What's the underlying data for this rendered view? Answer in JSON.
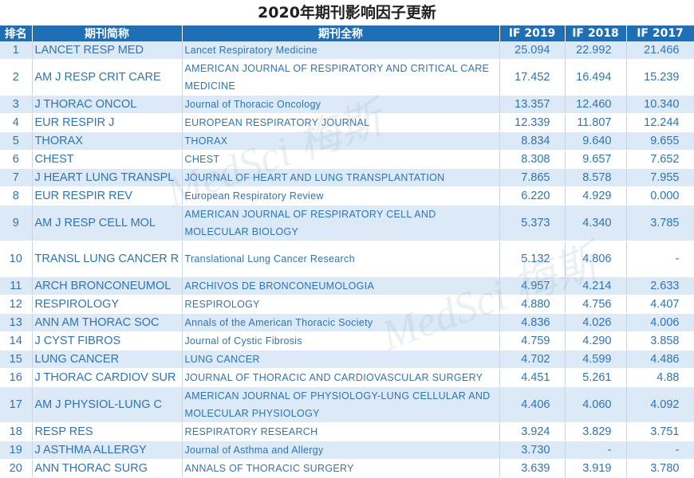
{
  "title": "2020年期刊影响因子更新",
  "headers": {
    "rank": "排名",
    "abbr": "期刊简称",
    "full": "期刊全称",
    "if2019": "IF 2019",
    "if2018": "IF 2018",
    "if2017": "IF 2017"
  },
  "watermark": "MedSci 梅斯",
  "rows": [
    {
      "rank": "1",
      "abbr": "LANCET RESP MED",
      "full": "Lancet Respiratory Medicine",
      "if2019": "25.094",
      "if2018": "22.992",
      "if2017": "21.466"
    },
    {
      "rank": "2",
      "abbr": "AM J RESP CRIT CARE",
      "full": "AMERICAN JOURNAL OF RESPIRATORY AND CRITICAL CARE MEDICINE",
      "if2019": "17.452",
      "if2018": "16.494",
      "if2017": "15.239"
    },
    {
      "rank": "3",
      "abbr": "J THORAC ONCOL",
      "full": "Journal of Thoracic Oncology",
      "if2019": "13.357",
      "if2018": "12.460",
      "if2017": "10.340"
    },
    {
      "rank": "4",
      "abbr": "EUR RESPIR J",
      "full": "EUROPEAN RESPIRATORY JOURNAL",
      "if2019": "12.339",
      "if2018": "11.807",
      "if2017": "12.244"
    },
    {
      "rank": "5",
      "abbr": "THORAX",
      "full": "THORAX",
      "if2019": "8.834",
      "if2018": "9.640",
      "if2017": "9.655"
    },
    {
      "rank": "6",
      "abbr": "CHEST",
      "full": "CHEST",
      "if2019": "8.308",
      "if2018": "9.657",
      "if2017": "7.652"
    },
    {
      "rank": "7",
      "abbr": "J HEART LUNG TRANSPL",
      "full": "JOURNAL OF HEART AND LUNG TRANSPLANTATION",
      "if2019": "7.865",
      "if2018": "8.578",
      "if2017": "7.955"
    },
    {
      "rank": "8",
      "abbr": "EUR RESPIR REV",
      "full": "European Respiratory Review",
      "if2019": "6.220",
      "if2018": "4.929",
      "if2017": "0.000"
    },
    {
      "rank": "9",
      "abbr": "AM J RESP CELL MOL",
      "full": "AMERICAN JOURNAL OF RESPIRATORY CELL AND MOLECULAR BIOLOGY",
      "if2019": "5.373",
      "if2018": "4.340",
      "if2017": "3.785"
    },
    {
      "rank": "10",
      "abbr": "TRANSL LUNG CANCER R",
      "full": "Translational Lung Cancer Research",
      "if2019": "5.132",
      "if2018": "4.806",
      "if2017": "-"
    },
    {
      "rank": "11",
      "abbr": "ARCH BRONCONEUMOL",
      "full": "ARCHIVOS DE BRONCONEUMOLOGIA",
      "if2019": "4.957",
      "if2018": "4.214",
      "if2017": "2.633"
    },
    {
      "rank": "12",
      "abbr": "RESPIROLOGY",
      "full": "RESPIROLOGY",
      "if2019": "4.880",
      "if2018": "4.756",
      "if2017": "4.407"
    },
    {
      "rank": "13",
      "abbr": "ANN AM THORAC SOC",
      "full": "Annals of the American Thoracic Society",
      "if2019": "4.836",
      "if2018": "4.026",
      "if2017": "4.006"
    },
    {
      "rank": "14",
      "abbr": "J CYST FIBROS",
      "full": "Journal of Cystic Fibrosis",
      "if2019": "4.759",
      "if2018": "4.290",
      "if2017": "3.858"
    },
    {
      "rank": "15",
      "abbr": "LUNG CANCER",
      "full": "LUNG CANCER",
      "if2019": "4.702",
      "if2018": "4.599",
      "if2017": "4.486"
    },
    {
      "rank": "16",
      "abbr": "J THORAC CARDIOV SUR",
      "full": "JOURNAL OF THORACIC AND CARDIOVASCULAR SURGERY",
      "if2019": "4.451",
      "if2018": "5.261",
      "if2017": "4.88"
    },
    {
      "rank": "17",
      "abbr": "AM J PHYSIOL-LUNG C",
      "full": "AMERICAN JOURNAL OF PHYSIOLOGY-LUNG CELLULAR AND MOLECULAR PHYSIOLOGY",
      "if2019": "4.406",
      "if2018": "4.060",
      "if2017": "4.092"
    },
    {
      "rank": "18",
      "abbr": "RESP RES",
      "full": "RESPIRATORY RESEARCH",
      "if2019": "3.924",
      "if2018": "3.829",
      "if2017": "3.751"
    },
    {
      "rank": "19",
      "abbr": "J ASTHMA ALLERGY",
      "full": "Journal of Asthma and Allergy",
      "if2019": "3.730",
      "if2018": "-",
      "if2017": "-"
    },
    {
      "rank": "20",
      "abbr": "ANN THORAC SURG",
      "full": "ANNALS OF THORACIC SURGERY",
      "if2019": "3.639",
      "if2018": "3.919",
      "if2017": "3.780"
    }
  ]
}
